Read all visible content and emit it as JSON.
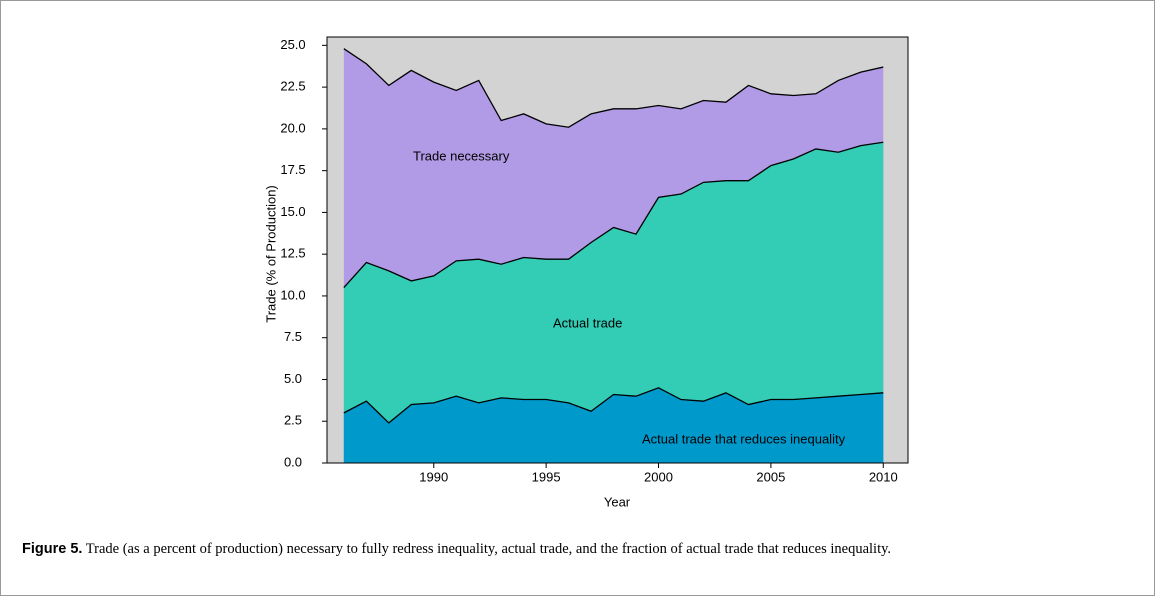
{
  "chart_data": {
    "type": "area",
    "x": [
      1986,
      1987,
      1988,
      1989,
      1990,
      1991,
      1992,
      1993,
      1994,
      1995,
      1996,
      1997,
      1998,
      1999,
      2000,
      2001,
      2002,
      2003,
      2004,
      2005,
      2006,
      2007,
      2008,
      2009,
      2010
    ],
    "series": [
      {
        "name": "Trade necessary",
        "color": "#b19be6",
        "values": [
          24.8,
          23.9,
          22.6,
          23.5,
          22.8,
          22.3,
          22.9,
          20.5,
          20.9,
          20.3,
          20.1,
          20.9,
          21.2,
          21.2,
          21.4,
          21.2,
          21.7,
          21.6,
          22.6,
          22.1,
          22.0,
          22.1,
          22.9,
          23.4,
          23.7
        ]
      },
      {
        "name": "Actual trade",
        "color": "#33ccb5",
        "values": [
          10.5,
          12.0,
          11.5,
          10.9,
          11.2,
          12.1,
          12.2,
          11.9,
          12.3,
          12.2,
          12.2,
          13.2,
          14.1,
          13.7,
          15.9,
          16.1,
          16.8,
          16.9,
          16.9,
          17.8,
          18.2,
          18.8,
          18.6,
          19.0,
          19.2
        ]
      },
      {
        "name": "Actual trade that reduces inequality",
        "color": "#0099cc",
        "values": [
          3.0,
          3.7,
          2.4,
          3.5,
          3.6,
          4.0,
          3.6,
          3.9,
          3.8,
          3.8,
          3.6,
          3.1,
          4.1,
          4.0,
          4.5,
          3.8,
          3.7,
          4.2,
          3.5,
          3.8,
          3.8,
          3.9,
          4.0,
          4.1,
          4.2
        ]
      }
    ],
    "xlabel": "Year",
    "ylabel": "Trade (% of Production)",
    "xlim": [
      1985.25,
      2011.1
    ],
    "ylim": [
      0,
      25.5
    ],
    "xticks": [
      1990,
      1995,
      2000,
      2005,
      2010
    ],
    "yticks": [
      {
        "value": 0,
        "label": "0.0"
      },
      2.5,
      {
        "value": 5,
        "label": "5.0"
      },
      7.5,
      {
        "value": 10,
        "label": "10.0"
      },
      12.5,
      {
        "value": 15,
        "label": "15.0"
      },
      17.5,
      {
        "value": 20,
        "label": "20.0"
      },
      22.5,
      {
        "value": 25,
        "label": "25.0"
      }
    ],
    "background": "#d3d3d3"
  },
  "caption": {
    "label": "Figure 5.",
    "text": " Trade (as a percent of production) necessary to fully redress inequality, actual trade, and the fraction of actual trade that reduces inequality."
  }
}
